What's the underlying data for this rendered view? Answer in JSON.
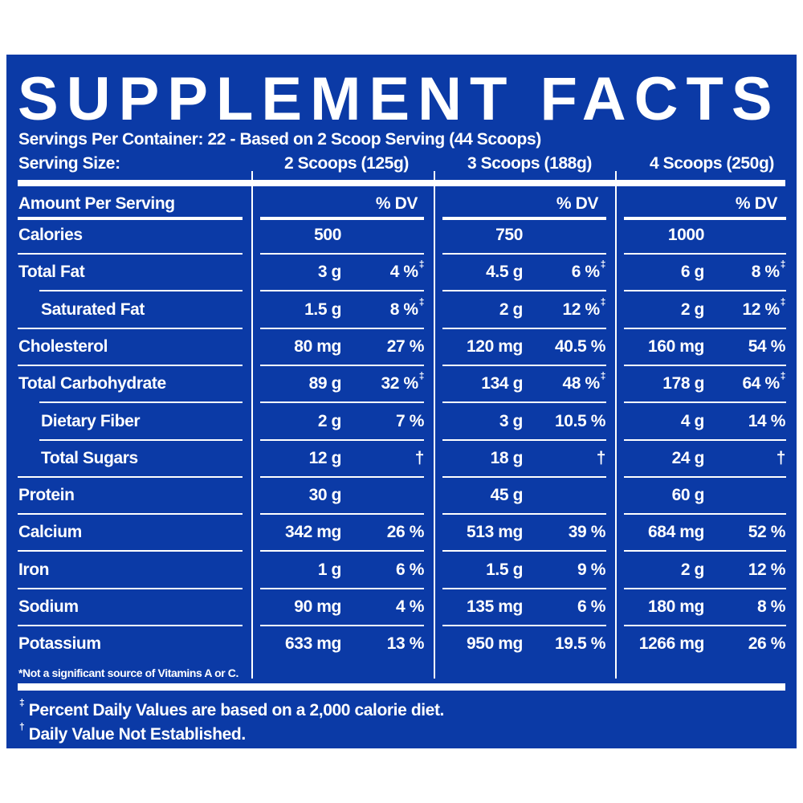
{
  "title": "SUPPLEMENT FACTS",
  "servings_per_container": "Servings Per Container: 22 - Based on 2 Scoop Serving (44 Scoops)",
  "serving_size_label": "Serving Size:",
  "serving_sizes": [
    "2 Scoops (125g)",
    "3 Scoops (188g)",
    "4 Scoops (250g)"
  ],
  "amount_per_serving": "Amount Per Serving",
  "dv_header": "% DV",
  "rows": [
    {
      "label": "Calories",
      "indent": false,
      "vals": [
        [
          "500",
          "",
          ""
        ],
        [
          "750",
          "",
          ""
        ],
        [
          "1000",
          "",
          ""
        ]
      ]
    },
    {
      "label": "Total Fat",
      "indent": false,
      "vals": [
        [
          "3 g",
          "4 %",
          "‡"
        ],
        [
          "4.5 g",
          "6 %",
          "‡"
        ],
        [
          "6 g",
          "8 %",
          "‡"
        ]
      ]
    },
    {
      "label": "Saturated Fat",
      "indent": true,
      "vals": [
        [
          "1.5 g",
          "8 %",
          "‡"
        ],
        [
          "2 g",
          "12 %",
          "‡"
        ],
        [
          "2 g",
          "12 %",
          "‡"
        ]
      ]
    },
    {
      "label": "Cholesterol",
      "indent": false,
      "vals": [
        [
          "80 mg",
          "27 %",
          ""
        ],
        [
          "120 mg",
          "40.5 %",
          ""
        ],
        [
          "160 mg",
          "54 %",
          ""
        ]
      ]
    },
    {
      "label": "Total Carbohydrate",
      "indent": false,
      "vals": [
        [
          "89 g",
          "32 %",
          "‡"
        ],
        [
          "134 g",
          "48 %",
          "‡"
        ],
        [
          "178 g",
          "64 %",
          "‡"
        ]
      ]
    },
    {
      "label": "Dietary Fiber",
      "indent": true,
      "vals": [
        [
          "2 g",
          "7 %",
          ""
        ],
        [
          "3 g",
          "10.5 %",
          ""
        ],
        [
          "4 g",
          "14 %",
          ""
        ]
      ]
    },
    {
      "label": "Total Sugars",
      "indent": true,
      "vals": [
        [
          "12 g",
          "†",
          ""
        ],
        [
          "18 g",
          "†",
          ""
        ],
        [
          "24 g",
          "†",
          ""
        ]
      ]
    },
    {
      "label": "Protein",
      "indent": false,
      "vals": [
        [
          "30 g",
          "",
          ""
        ],
        [
          "45 g",
          "",
          ""
        ],
        [
          "60 g",
          "",
          ""
        ]
      ]
    },
    {
      "label": "Calcium",
      "indent": false,
      "vals": [
        [
          "342 mg",
          "26 %",
          ""
        ],
        [
          "513 mg",
          "39 %",
          ""
        ],
        [
          "684 mg",
          "52 %",
          ""
        ]
      ]
    },
    {
      "label": "Iron",
      "indent": false,
      "vals": [
        [
          "1 g",
          "6 %",
          ""
        ],
        [
          "1.5 g",
          "9 %",
          ""
        ],
        [
          "2 g",
          "12 %",
          ""
        ]
      ]
    },
    {
      "label": "Sodium",
      "indent": false,
      "vals": [
        [
          "90 mg",
          "4 %",
          ""
        ],
        [
          "135 mg",
          "6 %",
          ""
        ],
        [
          "180 mg",
          "8 %",
          ""
        ]
      ]
    },
    {
      "label": "Potassium",
      "indent": false,
      "vals": [
        [
          "633 mg",
          "13 %",
          ""
        ],
        [
          "950 mg",
          "19.5 %",
          ""
        ],
        [
          "1266 mg",
          "26 %",
          ""
        ]
      ]
    }
  ],
  "vitamins_note": "*Not a significant source of Vitamins A or C.",
  "footnotes": [
    {
      "mark": "‡",
      "text": "Percent Daily Values are based on a 2,000 calorie diet."
    },
    {
      "mark": "†",
      "text": "Daily Value Not Established."
    }
  ]
}
